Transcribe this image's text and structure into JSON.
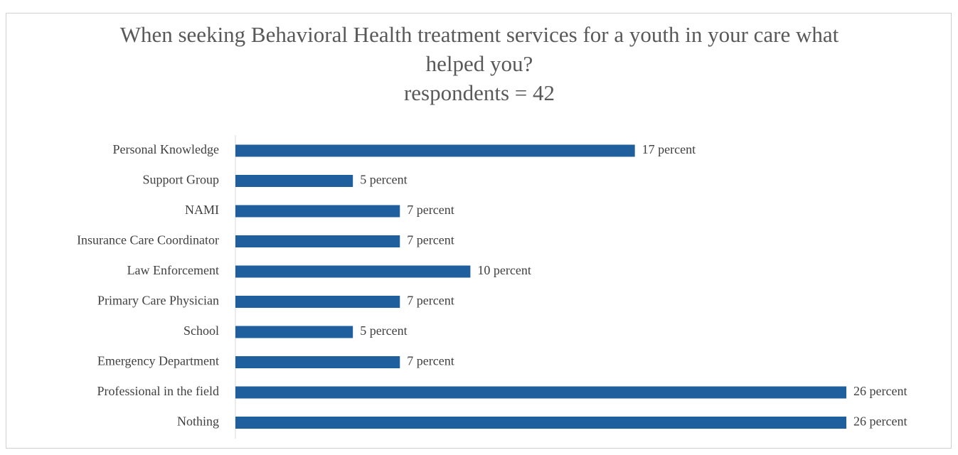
{
  "chart_data": {
    "type": "bar",
    "orientation": "horizontal",
    "title": "When seeking Behavioral Health treatment services for a youth in your care what helped you?",
    "subtitle": "respondents = 42",
    "categories": [
      "Personal Knowledge",
      "Support Group",
      "NAMI",
      "Insurance Care Coordinator",
      "Law Enforcement",
      "Primary Care Physician",
      "School",
      "Emergency Department",
      "Professional in the field",
      "Nothing"
    ],
    "values": [
      17,
      5,
      7,
      7,
      10,
      7,
      5,
      7,
      26,
      26
    ],
    "value_labels": [
      "17 percent",
      "5 percent",
      "7 percent",
      "7 percent",
      "10 percent",
      "7 percent",
      "5 percent",
      "7 percent",
      "26 percent",
      "26 percent"
    ],
    "color": "#1f5f9e"
  }
}
